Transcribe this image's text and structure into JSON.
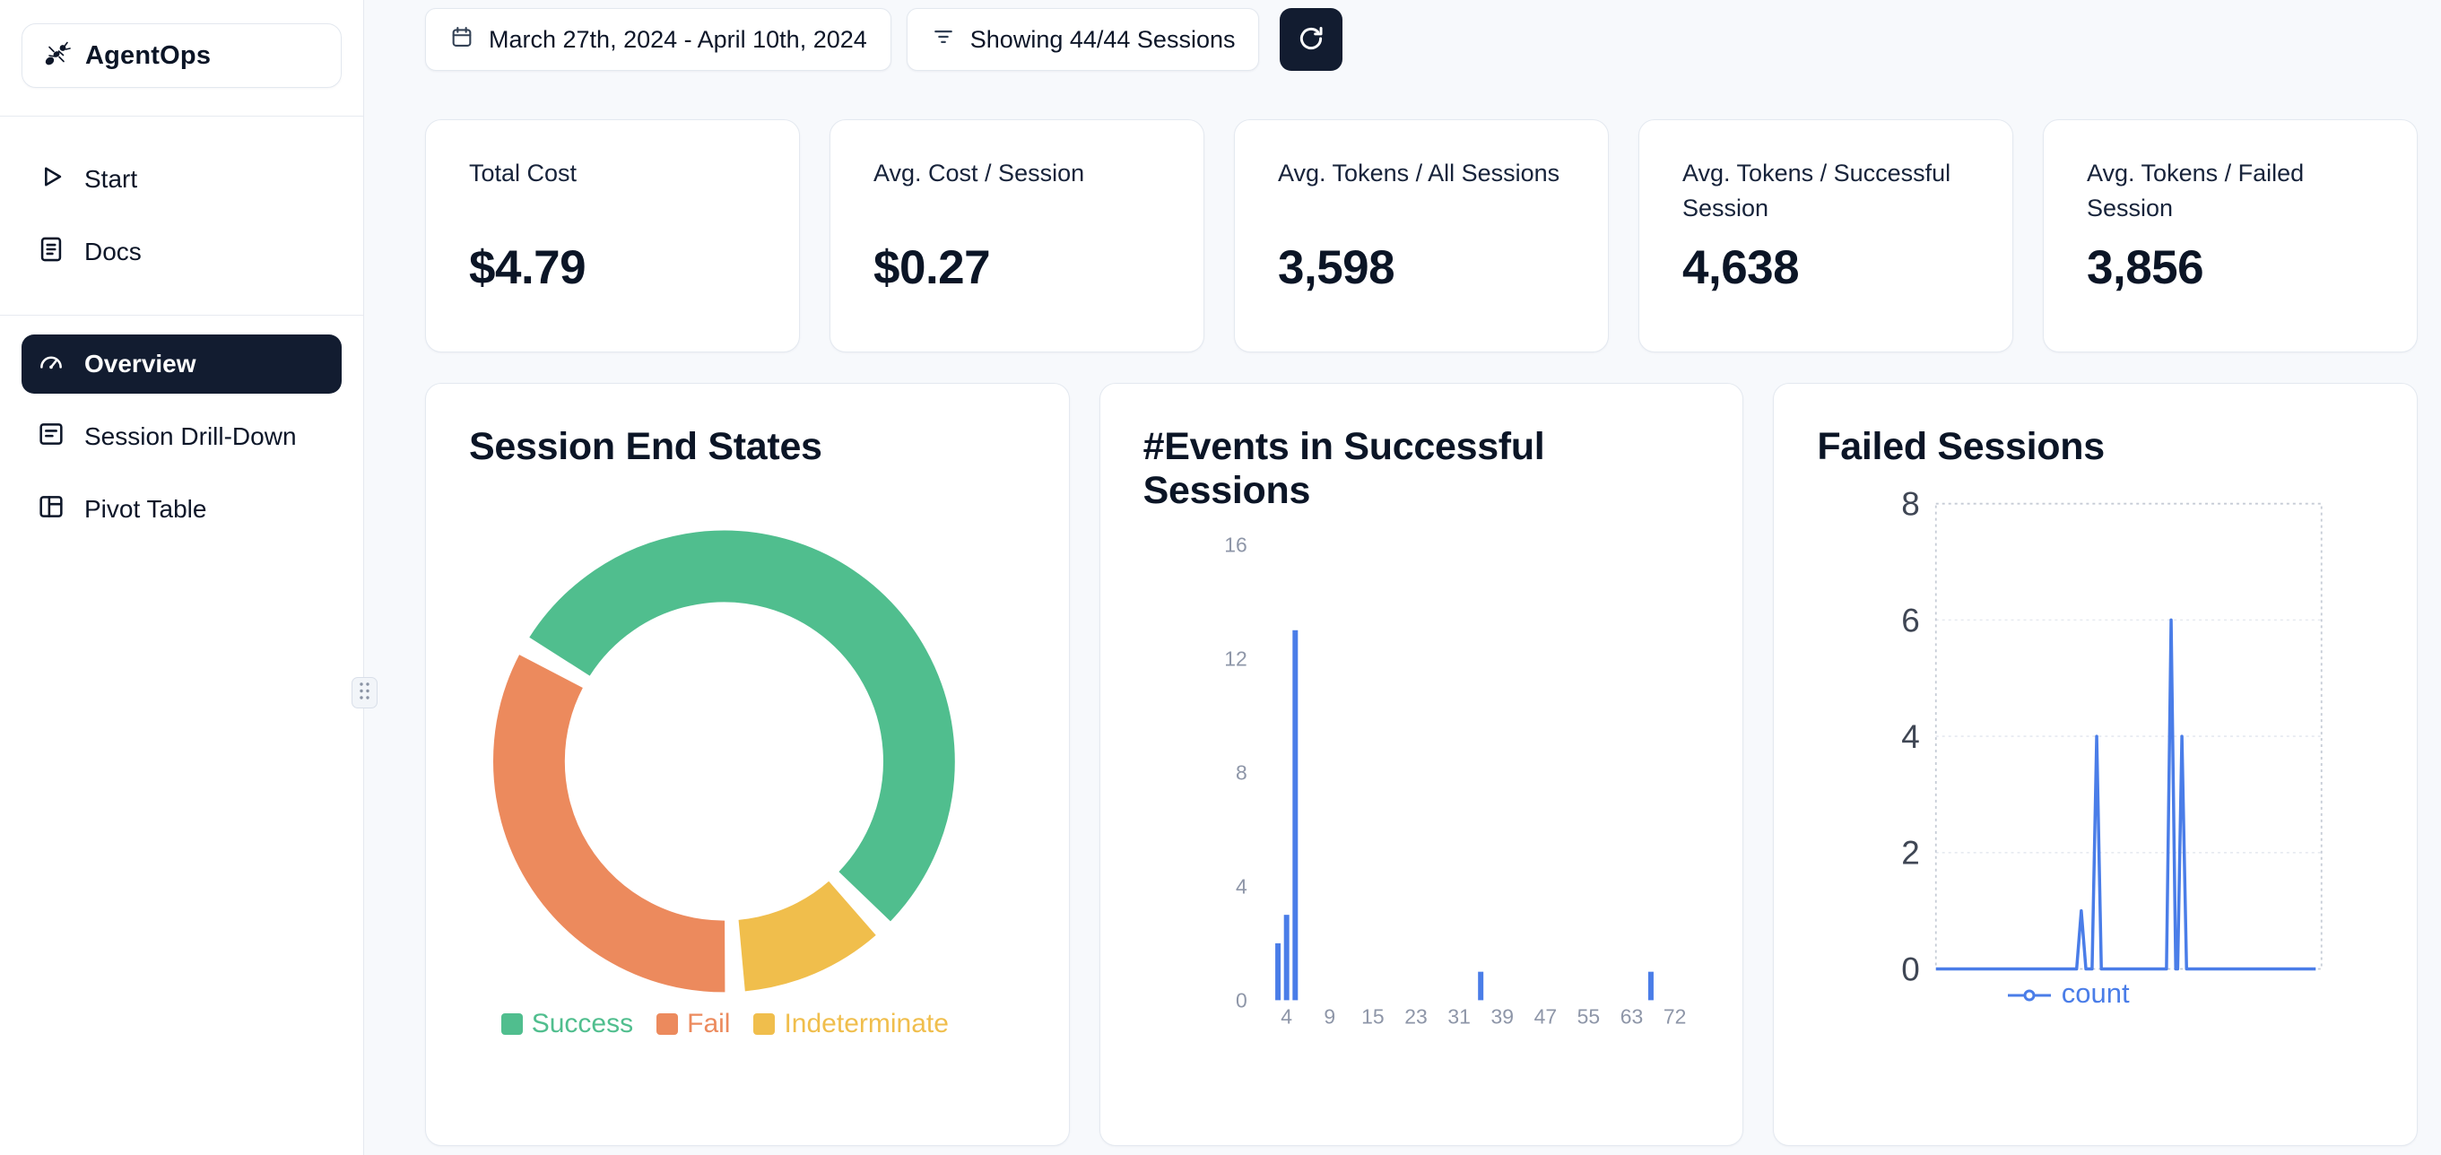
{
  "brand": {
    "name": "AgentOps"
  },
  "sidebar": {
    "items": [
      {
        "label": "Start"
      },
      {
        "label": "Docs"
      },
      {
        "label": "Overview",
        "active": true
      },
      {
        "label": "Session Drill-Down"
      },
      {
        "label": "Pivot Table"
      }
    ]
  },
  "toolbar": {
    "date_range": "March 27th, 2024 - April 10th, 2024",
    "sessions_filter": "Showing 44/44 Sessions"
  },
  "stats": [
    {
      "label": "Total Cost",
      "value": "$4.79"
    },
    {
      "label": "Avg. Cost / Session",
      "value": "$0.27"
    },
    {
      "label": "Avg. Tokens / All Sessions",
      "value": "3,598"
    },
    {
      "label": "Avg. Tokens / Successful Session",
      "value": "4,638"
    },
    {
      "label": "Avg. Tokens / Failed Session",
      "value": "3,856"
    }
  ],
  "chart_data": [
    {
      "type": "pie",
      "donut": true,
      "title": "Session End States",
      "labels": [
        "Success",
        "Fail",
        "Indeterminate"
      ],
      "values": [
        24,
        15,
        5
      ],
      "colors": [
        "#50BE8E",
        "#EC8A5D",
        "#F0BE4C"
      ],
      "legend_position": "bottom",
      "start_angle": 300,
      "draw_order": [
        0,
        2,
        1
      ],
      "pad_angle": 5
    },
    {
      "type": "bar",
      "title": "#Events in Successful Sessions",
      "x": [
        3,
        4,
        5,
        35,
        67
      ],
      "values": [
        2,
        3,
        13,
        1,
        1
      ],
      "xticks": [
        4,
        9,
        15,
        23,
        31,
        39,
        47,
        55,
        63,
        72
      ],
      "yticks": [
        0,
        4,
        8,
        12,
        16
      ],
      "ylim": [
        0,
        16
      ],
      "bar_color": "#4A7DE8",
      "grid": false
    },
    {
      "type": "line",
      "title": "Failed Sessions",
      "series": [
        {
          "name": "count",
          "points": [
            [
              0,
              0
            ],
            [
              0.365,
              0
            ],
            [
              0.377,
              1
            ],
            [
              0.389,
              0
            ],
            [
              0.405,
              0
            ],
            [
              0.417,
              4
            ],
            [
              0.429,
              0
            ],
            [
              0.598,
              0
            ],
            [
              0.61,
              6
            ],
            [
              0.622,
              0
            ],
            [
              0.627,
              0
            ],
            [
              0.638,
              4
            ],
            [
              0.65,
              0
            ],
            [
              0.985,
              0
            ]
          ]
        }
      ],
      "yticks": [
        0,
        2,
        4,
        6,
        8
      ],
      "ylim": [
        0,
        8
      ],
      "line_color": "#4A7DE8",
      "legend": "count",
      "grid": "dashed"
    }
  ]
}
